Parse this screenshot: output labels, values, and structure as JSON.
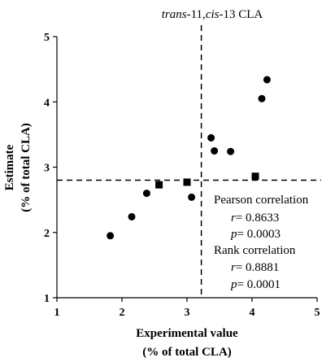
{
  "chart_data": {
    "type": "scatter",
    "title": {
      "italic": "trans",
      "rest": "-11,",
      "italic2": "cis",
      "rest2": "-13 CLA"
    },
    "xlabel": [
      "Experimental value",
      "(% of total CLA)"
    ],
    "ylabel": [
      "Estimate",
      "(% of total CLA)"
    ],
    "xlim": [
      1,
      5
    ],
    "ylim": [
      1,
      5
    ],
    "xticks": [
      "1",
      "2",
      "3",
      "4",
      "5"
    ],
    "yticks": [
      "1",
      "2",
      "3",
      "4",
      "5"
    ],
    "grid": false,
    "series": [
      {
        "marker": "circle",
        "color": "#000000",
        "points": [
          {
            "x": 1.82,
            "y": 1.95
          },
          {
            "x": 2.15,
            "y": 2.24
          },
          {
            "x": 2.38,
            "y": 2.6
          },
          {
            "x": 3.07,
            "y": 2.54
          },
          {
            "x": 3.37,
            "y": 3.45
          },
          {
            "x": 3.42,
            "y": 3.25
          },
          {
            "x": 3.67,
            "y": 3.24
          },
          {
            "x": 4.15,
            "y": 4.05
          },
          {
            "x": 4.23,
            "y": 4.34
          }
        ]
      },
      {
        "marker": "square",
        "color": "#000000",
        "points": [
          {
            "x": 2.57,
            "y": 2.73
          },
          {
            "x": 3.0,
            "y": 2.77
          },
          {
            "x": 4.05,
            "y": 2.86
          }
        ]
      }
    ],
    "reference_lines": {
      "vertical_x": 3.22,
      "horizontal_y": 2.8,
      "style": "dashed"
    },
    "annotations": {
      "pearson_label": "Pearson correlation",
      "pearson_r_var": "r",
      "pearson_r_val": "= 0.8633",
      "pearson_p_var": "p",
      "pearson_p_val": "= 0.0003",
      "rank_label": "Rank correlation",
      "rank_r_var": "r",
      "rank_r_val": "= 0.8881",
      "rank_p_var": "p",
      "rank_p_val": "= 0.0001"
    }
  }
}
